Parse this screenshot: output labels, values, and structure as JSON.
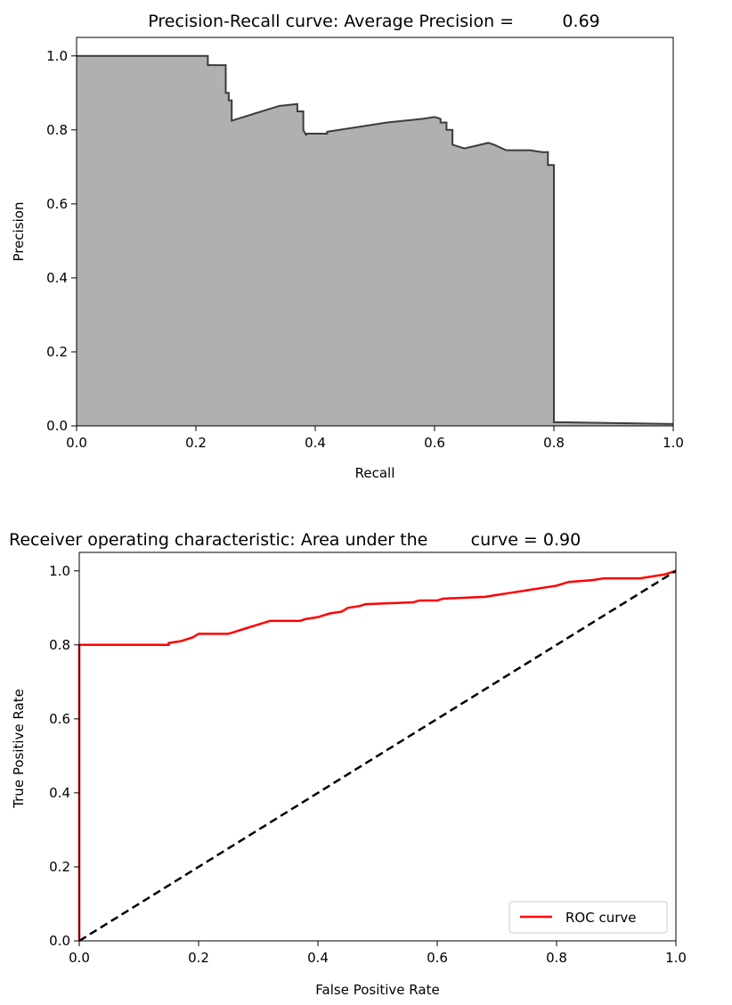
{
  "chart_data": [
    {
      "type": "area",
      "title": "Precision-Recall curve: Average Precision =         0.69",
      "xlabel": "Recall",
      "ylabel": "Precision",
      "xlim": [
        0,
        1
      ],
      "ylim": [
        0,
        1.05
      ],
      "xticks": [
        "0.0",
        "0.2",
        "0.4",
        "0.6",
        "0.8",
        "1.0"
      ],
      "yticks": [
        "0.0",
        "0.2",
        "0.4",
        "0.6",
        "0.8",
        "1.0"
      ],
      "grid": false,
      "fill_color": "#b0b0b0",
      "line_color": "#3c3c3c",
      "x": [
        0.0,
        0.22,
        0.22,
        0.25,
        0.25,
        0.255,
        0.255,
        0.26,
        0.26,
        0.3,
        0.34,
        0.37,
        0.37,
        0.38,
        0.38,
        0.385,
        0.385,
        0.42,
        0.42,
        0.5,
        0.52,
        0.52,
        0.58,
        0.6,
        0.61,
        0.61,
        0.62,
        0.62,
        0.63,
        0.63,
        0.65,
        0.69,
        0.7,
        0.72,
        0.74,
        0.76,
        0.78,
        0.79,
        0.79,
        0.8,
        0.8,
        0.81,
        1.0
      ],
      "y": [
        1.0,
        1.0,
        0.975,
        0.975,
        0.9,
        0.9,
        0.88,
        0.88,
        0.825,
        0.845,
        0.865,
        0.87,
        0.85,
        0.85,
        0.8,
        0.785,
        0.79,
        0.79,
        0.795,
        0.815,
        0.82,
        0.82,
        0.83,
        0.835,
        0.83,
        0.82,
        0.82,
        0.8,
        0.8,
        0.76,
        0.75,
        0.765,
        0.76,
        0.745,
        0.745,
        0.745,
        0.74,
        0.74,
        0.705,
        0.705,
        0.01,
        0.01,
        0.005
      ]
    },
    {
      "type": "line",
      "title": "Receiver operating characteristic: Area under the        curve = 0.90",
      "xlabel": "False Positive Rate",
      "ylabel": "True Positive Rate",
      "xlim": [
        0,
        1
      ],
      "ylim": [
        0,
        1.05
      ],
      "xticks": [
        "0.0",
        "0.2",
        "0.4",
        "0.6",
        "0.8",
        "1.0"
      ],
      "yticks": [
        "0.0",
        "0.2",
        "0.4",
        "0.6",
        "0.8",
        "1.0"
      ],
      "grid": false,
      "legend_position": "lower-right",
      "series": [
        {
          "name": "ROC curve",
          "color": "#ff0000",
          "x": [
            0.0,
            0.0,
            0.15,
            0.15,
            0.17,
            0.19,
            0.2,
            0.25,
            0.26,
            0.27,
            0.28,
            0.29,
            0.3,
            0.31,
            0.32,
            0.37,
            0.38,
            0.4,
            0.41,
            0.42,
            0.44,
            0.45,
            0.47,
            0.48,
            0.56,
            0.57,
            0.6,
            0.61,
            0.68,
            0.7,
            0.72,
            0.74,
            0.76,
            0.78,
            0.8,
            0.82,
            0.86,
            0.88,
            0.94,
            0.96,
            0.98,
            1.0
          ],
          "y": [
            0.0,
            0.8,
            0.8,
            0.805,
            0.81,
            0.82,
            0.83,
            0.83,
            0.835,
            0.84,
            0.845,
            0.85,
            0.855,
            0.86,
            0.865,
            0.865,
            0.87,
            0.875,
            0.88,
            0.885,
            0.89,
            0.9,
            0.905,
            0.91,
            0.915,
            0.92,
            0.92,
            0.925,
            0.93,
            0.935,
            0.94,
            0.945,
            0.95,
            0.955,
            0.96,
            0.97,
            0.975,
            0.98,
            0.98,
            0.985,
            0.99,
            1.0
          ]
        },
        {
          "name": "",
          "color": "#000000",
          "style": "dashed",
          "x": [
            0.0,
            1.0
          ],
          "y": [
            0.0,
            1.0
          ]
        }
      ],
      "legend": [
        "ROC curve"
      ]
    }
  ]
}
